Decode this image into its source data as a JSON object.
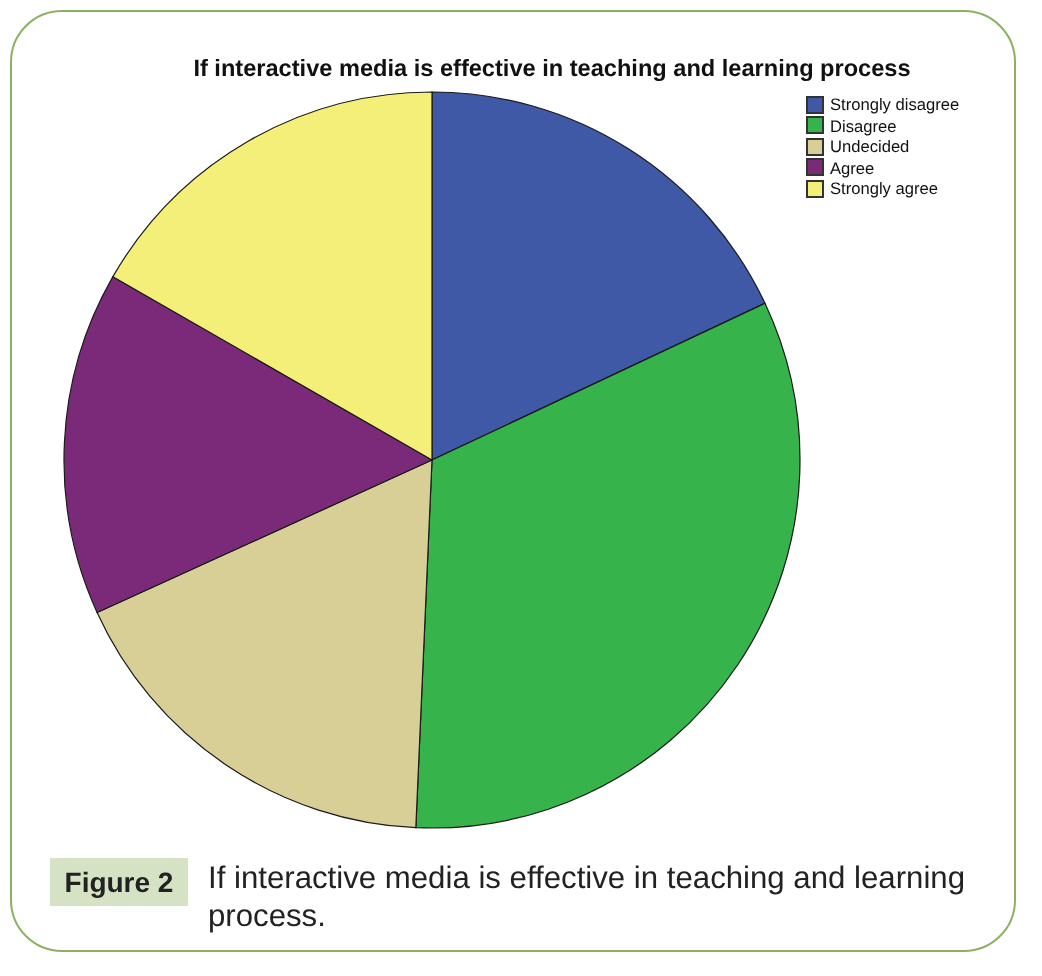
{
  "chart_data": {
    "type": "pie",
    "title": "If interactive media is effective in teaching and learning process",
    "categories": [
      "Strongly disagree",
      "Disagree",
      "Undecided",
      "Agree",
      "Strongly agree"
    ],
    "values": [
      18.0,
      32.7,
      17.5,
      15.1,
      16.7
    ],
    "colors": [
      "#3f59a6",
      "#36b34a",
      "#d8cf97",
      "#7b2a7a",
      "#f3ef78"
    ],
    "legend": "top right",
    "annotations": [
      "Figure 2",
      "If interactive media is effective in teaching and learning process."
    ]
  }
}
